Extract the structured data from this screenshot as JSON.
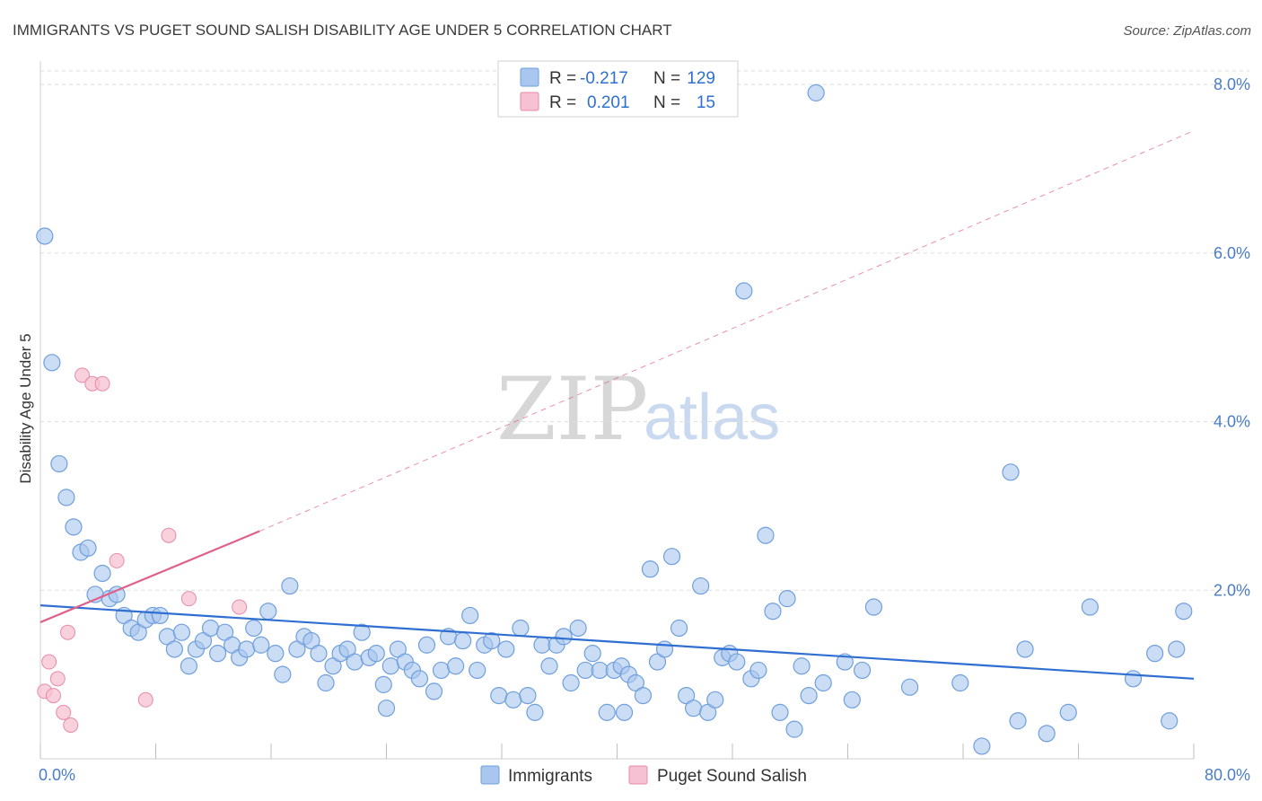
{
  "title": "IMMIGRANTS VS PUGET SOUND SALISH DISABILITY AGE UNDER 5 CORRELATION CHART",
  "source": "Source: ZipAtlas.com",
  "watermark": {
    "zip": "ZIP",
    "atlas": "atlas"
  },
  "colors": {
    "blue_fill": "#a9c7ee",
    "blue_stroke": "#6f9fdc",
    "blue_line": "#2f6fd1",
    "pink_fill": "#f6c1d2",
    "pink_stroke": "#e88aa8",
    "pink_line": "#e0608c",
    "tick_text": "#4a7cc8",
    "grid": "#dddddd"
  },
  "legend": {
    "rows": [
      {
        "r_label": "R =",
        "r_value": "-0.217",
        "n_label": "N =",
        "n_value": "129"
      },
      {
        "r_label": "R =",
        "r_value": "0.201",
        "n_label": "N =",
        "n_value": "15"
      }
    ]
  },
  "bottom_legend": [
    "Immigrants",
    "Puget Sound Salish"
  ],
  "chart_data": {
    "type": "scatter",
    "xlabel": "",
    "ylabel": "Disability Age Under 5",
    "xlim": [
      0,
      80
    ],
    "ylim": [
      0,
      8.0
    ],
    "x_tick_labels": [
      "0.0%",
      "80.0%"
    ],
    "y_ticks": [
      2.0,
      4.0,
      6.0,
      8.0
    ],
    "y_tick_labels": [
      "2.0%",
      "4.0%",
      "6.0%",
      "8.0%"
    ],
    "grid": "horizontal dashed",
    "series": [
      {
        "name": "Immigrants",
        "trend": {
          "x0": 0,
          "y0": 1.82,
          "x1": 80,
          "y1": 0.95,
          "style": "solid"
        },
        "points": [
          [
            0.3,
            6.2
          ],
          [
            0.8,
            4.7
          ],
          [
            1.3,
            3.5
          ],
          [
            1.8,
            3.1
          ],
          [
            2.3,
            2.75
          ],
          [
            2.8,
            2.45
          ],
          [
            3.3,
            2.5
          ],
          [
            4.3,
            2.2
          ],
          [
            3.8,
            1.95
          ],
          [
            4.8,
            1.9
          ],
          [
            5.3,
            1.95
          ],
          [
            5.8,
            1.7
          ],
          [
            6.3,
            1.55
          ],
          [
            6.8,
            1.5
          ],
          [
            7.3,
            1.65
          ],
          [
            7.8,
            1.7
          ],
          [
            8.3,
            1.7
          ],
          [
            8.8,
            1.45
          ],
          [
            9.3,
            1.3
          ],
          [
            9.8,
            1.5
          ],
          [
            10.3,
            1.1
          ],
          [
            10.8,
            1.3
          ],
          [
            11.3,
            1.4
          ],
          [
            11.8,
            1.55
          ],
          [
            12.3,
            1.25
          ],
          [
            12.8,
            1.5
          ],
          [
            13.3,
            1.35
          ],
          [
            13.8,
            1.2
          ],
          [
            14.3,
            1.3
          ],
          [
            14.8,
            1.55
          ],
          [
            15.3,
            1.35
          ],
          [
            15.8,
            1.75
          ],
          [
            16.3,
            1.25
          ],
          [
            16.8,
            1.0
          ],
          [
            17.3,
            2.05
          ],
          [
            17.8,
            1.3
          ],
          [
            18.3,
            1.45
          ],
          [
            18.8,
            1.4
          ],
          [
            19.3,
            1.25
          ],
          [
            19.8,
            0.9
          ],
          [
            20.3,
            1.1
          ],
          [
            20.8,
            1.25
          ],
          [
            21.3,
            1.3
          ],
          [
            21.8,
            1.15
          ],
          [
            22.3,
            1.5
          ],
          [
            22.8,
            1.2
          ],
          [
            23.3,
            1.25
          ],
          [
            23.8,
            0.88
          ],
          [
            24.3,
            1.1
          ],
          [
            24.8,
            1.3
          ],
          [
            25.3,
            1.15
          ],
          [
            25.8,
            1.05
          ],
          [
            26.3,
            0.95
          ],
          [
            26.8,
            1.35
          ],
          [
            27.3,
            0.8
          ],
          [
            27.8,
            1.05
          ],
          [
            28.3,
            1.45
          ],
          [
            28.8,
            1.1
          ],
          [
            29.3,
            1.4
          ],
          [
            29.8,
            1.7
          ],
          [
            30.3,
            1.05
          ],
          [
            30.8,
            1.35
          ],
          [
            31.3,
            1.4
          ],
          [
            31.8,
            0.75
          ],
          [
            32.3,
            1.3
          ],
          [
            32.8,
            0.7
          ],
          [
            33.3,
            1.55
          ],
          [
            33.8,
            0.75
          ],
          [
            34.3,
            0.55
          ],
          [
            34.8,
            1.35
          ],
          [
            35.3,
            1.1
          ],
          [
            35.8,
            1.35
          ],
          [
            36.3,
            1.45
          ],
          [
            36.8,
            0.9
          ],
          [
            37.3,
            1.55
          ],
          [
            37.8,
            1.05
          ],
          [
            38.3,
            1.25
          ],
          [
            38.8,
            1.05
          ],
          [
            39.3,
            0.55
          ],
          [
            39.8,
            1.05
          ],
          [
            40.3,
            1.1
          ],
          [
            40.8,
            1.0
          ],
          [
            41.3,
            0.9
          ],
          [
            41.8,
            0.75
          ],
          [
            42.3,
            2.25
          ],
          [
            42.8,
            1.15
          ],
          [
            43.3,
            1.3
          ],
          [
            43.8,
            2.4
          ],
          [
            44.3,
            1.55
          ],
          [
            44.8,
            0.75
          ],
          [
            45.3,
            0.6
          ],
          [
            45.8,
            2.05
          ],
          [
            46.3,
            0.55
          ],
          [
            46.8,
            0.7
          ],
          [
            47.3,
            1.2
          ],
          [
            47.8,
            1.25
          ],
          [
            48.3,
            1.15
          ],
          [
            48.8,
            5.55
          ],
          [
            49.3,
            0.95
          ],
          [
            49.8,
            1.05
          ],
          [
            50.3,
            2.65
          ],
          [
            50.8,
            1.75
          ],
          [
            51.3,
            0.55
          ],
          [
            51.8,
            1.9
          ],
          [
            52.3,
            0.35
          ],
          [
            52.8,
            1.1
          ],
          [
            53.3,
            0.75
          ],
          [
            53.8,
            7.9
          ],
          [
            54.3,
            0.9
          ],
          [
            55.8,
            1.15
          ],
          [
            56.3,
            0.7
          ],
          [
            57.8,
            1.8
          ],
          [
            60.3,
            0.85
          ],
          [
            63.8,
            0.9
          ],
          [
            65.3,
            0.15
          ],
          [
            67.3,
            3.4
          ],
          [
            67.8,
            0.45
          ],
          [
            68.3,
            1.3
          ],
          [
            69.8,
            0.3
          ],
          [
            71.3,
            0.55
          ],
          [
            72.8,
            1.8
          ],
          [
            75.8,
            0.95
          ],
          [
            77.3,
            1.25
          ],
          [
            78.3,
            0.45
          ],
          [
            78.8,
            1.3
          ],
          [
            79.3,
            1.75
          ],
          [
            40.5,
            0.55
          ],
          [
            24.0,
            0.6
          ],
          [
            57.0,
            1.05
          ]
        ]
      },
      {
        "name": "Puget Sound Salish",
        "trend": {
          "x0": 0,
          "y0": 1.62,
          "x1": 15.2,
          "y1": 2.7,
          "x2": 80,
          "y2": 7.45,
          "style": "solid then dashed"
        },
        "points": [
          [
            0.3,
            0.8
          ],
          [
            0.6,
            1.15
          ],
          [
            0.9,
            0.75
          ],
          [
            1.2,
            0.95
          ],
          [
            1.6,
            0.55
          ],
          [
            1.9,
            1.5
          ],
          [
            2.1,
            0.4
          ],
          [
            2.9,
            4.55
          ],
          [
            3.6,
            4.45
          ],
          [
            4.3,
            4.45
          ],
          [
            5.3,
            2.35
          ],
          [
            7.3,
            0.7
          ],
          [
            8.9,
            2.65
          ],
          [
            10.3,
            1.9
          ],
          [
            13.8,
            1.8
          ]
        ]
      }
    ]
  }
}
